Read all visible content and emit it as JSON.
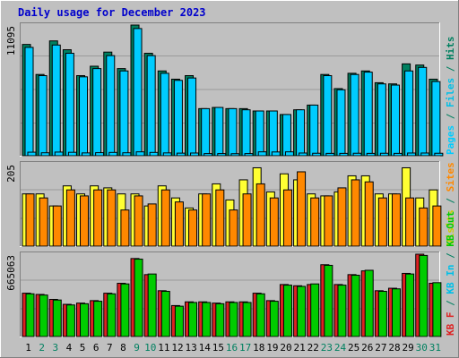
{
  "chart_data": {
    "type": "bar",
    "title": "Daily usage for December 2023",
    "colors": {
      "title": "#0000cc",
      "background": "#c0c0c0",
      "plot": "#c0c0c0",
      "pages": "#00ccff",
      "files": "#00c0e8",
      "hits": "#008060",
      "visits": "#ffff33",
      "sites": "#ff8800",
      "kbf": "#dd2222",
      "kbin": "#00cc00",
      "kbout": "#00cc00",
      "weekday_label": "#000000",
      "weekend_label": "#008060"
    },
    "days": [
      "1",
      "2",
      "3",
      "4",
      "5",
      "6",
      "7",
      "8",
      "9",
      "10",
      "11",
      "12",
      "13",
      "14",
      "15",
      "16",
      "17",
      "18",
      "19",
      "20",
      "21",
      "22",
      "23",
      "24",
      "25",
      "26",
      "27",
      "28",
      "29",
      "30",
      "31"
    ],
    "weekend_days": [
      2,
      3,
      9,
      10,
      16,
      17,
      23,
      24,
      30,
      31
    ],
    "panels": [
      {
        "id": "hits",
        "ymax_label": "11095",
        "ylim": [
          0,
          11095
        ],
        "side_labels": [
          {
            "text": "Pages",
            "color": "#00ccff"
          },
          {
            "text": " / ",
            "color": "#008060"
          },
          {
            "text": "Files",
            "color": "#00c0e8"
          },
          {
            "text": " / ",
            "color": "#008060"
          },
          {
            "text": "Hits",
            "color": "#008060"
          }
        ],
        "series": [
          {
            "name": "Hits",
            "color": "#008060",
            "values": [
              9450,
              6900,
              9750,
              9000,
              6800,
              7600,
              8800,
              7400,
              11095,
              8700,
              7200,
              6500,
              6800,
              4000,
              4100,
              4000,
              4000,
              3800,
              3800,
              3500,
              3900,
              4300,
              6900,
              5700,
              7000,
              7200,
              6200,
              6100,
              7800,
              7700,
              6500
            ]
          },
          {
            "name": "Files",
            "color": "#00ccff",
            "values": [
              9200,
              6800,
              9400,
              8700,
              6700,
              7400,
              8500,
              7200,
              10800,
              8500,
              7000,
              6400,
              6600,
              4000,
              4100,
              4000,
              3900,
              3800,
              3800,
              3500,
              3900,
              4300,
              6800,
              5600,
              6900,
              7100,
              6100,
              6000,
              7200,
              7500,
              6300
            ]
          },
          {
            "name": "Pages",
            "color": "#00ccff",
            "values": [
              300,
              250,
              310,
              290,
              240,
              260,
              280,
              250,
              330,
              280,
              240,
              220,
              230,
              180,
              180,
              170,
              180,
              330,
              320,
              330,
              230,
              210,
              200,
              200,
              210,
              200,
              210,
              200,
              230,
              230,
              210
            ]
          }
        ]
      },
      {
        "id": "visits",
        "ymax_label": "205",
        "ylim": [
          0,
          205
        ],
        "side_labels": [
          {
            "text": "Visits",
            "color": "#cccc00"
          },
          {
            "text": " / ",
            "color": "#008060"
          },
          {
            "text": "Sites",
            "color": "#ff8800"
          }
        ],
        "series": [
          {
            "name": "Visits",
            "color": "#ffff33",
            "values": [
              130,
              130,
              100,
              150,
              130,
              150,
              145,
              130,
              130,
              100,
              150,
              120,
              95,
              130,
              155,
              115,
              165,
              195,
              135,
              180,
              165,
              130,
              125,
              135,
              175,
              175,
              130,
              130,
              195,
              120,
              140
            ]
          },
          {
            "name": "Sites",
            "color": "#ff8800",
            "values": [
              130,
              120,
              100,
              140,
              125,
              140,
              140,
              90,
              125,
              105,
              140,
              110,
              90,
              130,
              140,
              90,
              130,
              155,
              120,
              140,
              185,
              120,
              125,
              145,
              165,
              160,
              120,
              130,
              120,
              95,
              100
            ]
          }
        ]
      },
      {
        "id": "kbytes",
        "ymax_label": "665063",
        "ylim": [
          0,
          665063
        ],
        "side_labels": [
          {
            "text": "KB F",
            "color": "#dd2222"
          },
          {
            "text": " / ",
            "color": "#008060"
          },
          {
            "text": "KB In",
            "color": "#00c0e8"
          },
          {
            "text": " / ",
            "color": "#008060"
          },
          {
            "text": "KB Out",
            "color": "#00cc00"
          }
        ],
        "series": [
          {
            "name": "KB F",
            "color": "#dd2222",
            "values": [
              350000,
              340000,
              300000,
              260000,
              270000,
              290000,
              350000,
              430000,
              630000,
              500000,
              370000,
              250000,
              280000,
              280000,
              270000,
              280000,
              280000,
              350000,
              290000,
              420000,
              410000,
              420000,
              580000,
              420000,
              500000,
              530000,
              370000,
              390000,
              510000,
              665063,
              430000
            ]
          },
          {
            "name": "KB Out",
            "color": "#00cc00",
            "values": [
              345000,
              335000,
              295000,
              255000,
              265000,
              285000,
              345000,
              425000,
              625000,
              505000,
              365000,
              245000,
              275000,
              275000,
              265000,
              275000,
              275000,
              345000,
              285000,
              415000,
              405000,
              425000,
              575000,
              415000,
              495000,
              535000,
              365000,
              385000,
              505000,
              655000,
              435000
            ]
          }
        ]
      }
    ]
  }
}
